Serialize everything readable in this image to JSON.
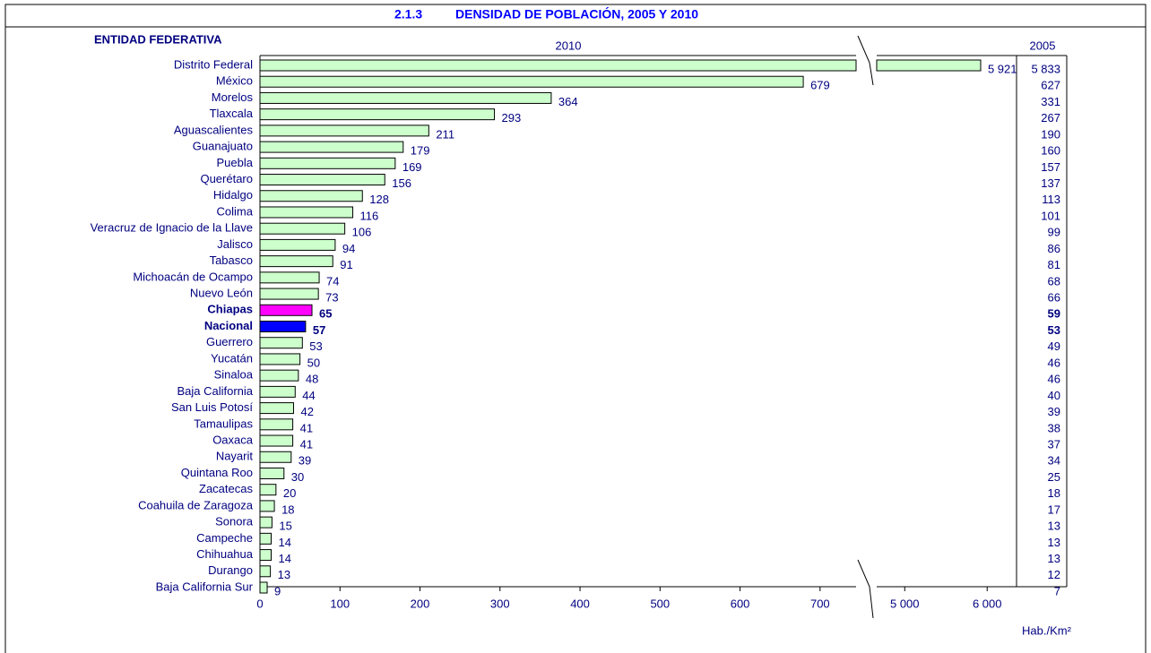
{
  "chart_data": {
    "type": "bar",
    "section": "2.1.3",
    "title": "DENSIDAD DE POBLACIÓN, 2005 Y 2010",
    "ylabel": "ENTIDAD FEDERATIVA",
    "xlabel": "Hab./Km²",
    "categories": [
      "Distrito Federal",
      "México",
      "Morelos",
      "Tlaxcala",
      "Aguascalientes",
      "Guanajuato",
      "Puebla",
      "Querétaro",
      "Hidalgo",
      "Colima",
      "Veracruz de Ignacio de la Llave",
      "Jalisco",
      "Tabasco",
      "Michoacán de Ocampo",
      "Nuevo León",
      "Chiapas",
      "Nacional",
      "Guerrero",
      "Yucatán",
      "Sinaloa",
      "Baja California",
      "San Luis Potosí",
      "Tamaulipas",
      "Oaxaca",
      "Nayarit",
      "Quintana Roo",
      "Zacatecas",
      "Coahuila de Zaragoza",
      "Sonora",
      "Campeche",
      "Chihuahua",
      "Durango",
      "Baja California Sur"
    ],
    "series": [
      {
        "name": "2010",
        "color": "#ccffcc",
        "colors": [
          "#ccffcc",
          "#ccffcc",
          "#ccffcc",
          "#ccffcc",
          "#ccffcc",
          "#ccffcc",
          "#ccffcc",
          "#ccffcc",
          "#ccffcc",
          "#ccffcc",
          "#ccffcc",
          "#ccffcc",
          "#ccffcc",
          "#ccffcc",
          "#ccffcc",
          "#ff00ff",
          "#0000ff",
          "#ccffcc",
          "#ccffcc",
          "#ccffcc",
          "#ccffcc",
          "#ccffcc",
          "#ccffcc",
          "#ccffcc",
          "#ccffcc",
          "#ccffcc",
          "#ccffcc",
          "#ccffcc",
          "#ccffcc",
          "#ccffcc",
          "#ccffcc",
          "#ccffcc",
          "#ccffcc"
        ],
        "values": [
          5921,
          679,
          364,
          293,
          211,
          179,
          169,
          156,
          128,
          116,
          106,
          94,
          91,
          74,
          73,
          65,
          57,
          53,
          50,
          48,
          44,
          42,
          41,
          41,
          39,
          30,
          20,
          18,
          15,
          14,
          14,
          13,
          9
        ],
        "value_labels": [
          "5 921",
          "679",
          "364",
          "293",
          "211",
          "179",
          "169",
          "156",
          "128",
          "116",
          "106",
          "94",
          "91",
          "74",
          "73",
          "65",
          "57",
          "53",
          "50",
          "48",
          "44",
          "42",
          "41",
          "41",
          "39",
          "30",
          "20",
          "18",
          "15",
          "14",
          "14",
          "13",
          "9"
        ]
      },
      {
        "name": "2005",
        "values": [
          5833,
          627,
          331,
          267,
          190,
          160,
          157,
          137,
          113,
          101,
          99,
          86,
          81,
          68,
          66,
          59,
          53,
          49,
          46,
          46,
          40,
          39,
          38,
          37,
          34,
          25,
          18,
          17,
          13,
          13,
          13,
          12,
          7
        ],
        "value_labels": [
          "5 833",
          "627",
          "331",
          "267",
          "190",
          "160",
          "157",
          "137",
          "113",
          "101",
          "99",
          "86",
          "81",
          "68",
          "66",
          "59",
          "53",
          "49",
          "46",
          "46",
          "40",
          "39",
          "38",
          "37",
          "34",
          "25",
          "18",
          "17",
          "13",
          "13",
          "13",
          "12",
          "7"
        ]
      }
    ],
    "xlim": [
      0,
      745
    ],
    "xticks": [
      0,
      100,
      200,
      300,
      400,
      500,
      600,
      700
    ],
    "x2lim": [
      4660,
      6965
    ],
    "x2ticks": [
      {
        "value": 5000,
        "label": "5 000"
      },
      {
        "value": 6000,
        "label": "6 000"
      }
    ]
  }
}
